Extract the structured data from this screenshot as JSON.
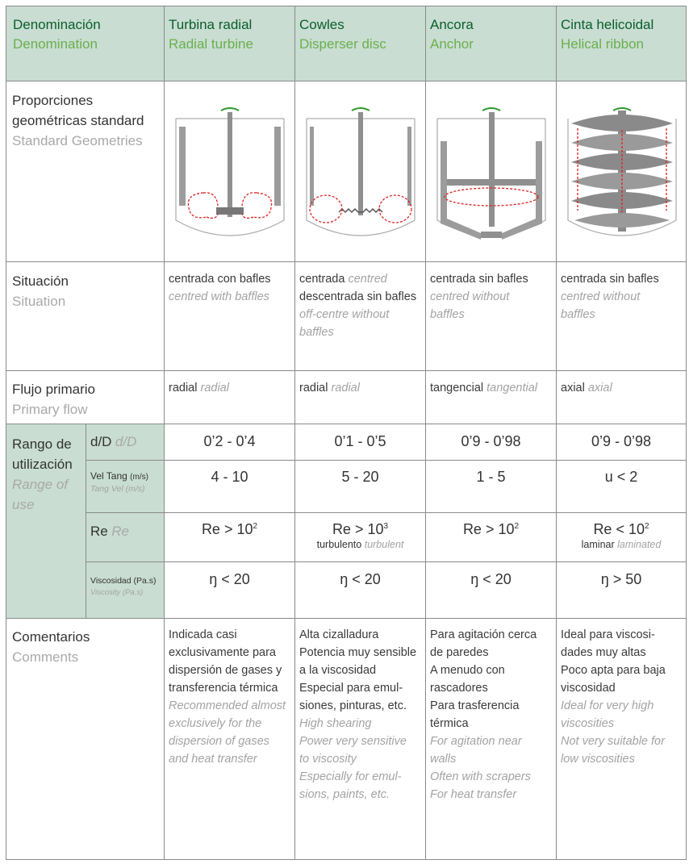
{
  "header": {
    "denomination": {
      "es": "Denominación",
      "en": "Denomination"
    },
    "columns": [
      {
        "es": "Turbina radial",
        "en": "Radial turbine"
      },
      {
        "es": "Cowles",
        "en": "Disperser disc"
      },
      {
        "es": "Ancora",
        "en": "Anchor"
      },
      {
        "es": "Cinta helicoidal",
        "en": "Helical ribbon"
      }
    ]
  },
  "geometry": {
    "label_line1": "Proporciones",
    "label_line2": "geométricas standard",
    "label_en": "Standard Geometries"
  },
  "situation": {
    "label_es": "Situación",
    "label_en": "Situation",
    "cells": [
      {
        "es": "centrada con bafles",
        "en": "centred with baffles"
      },
      {
        "es1": "centrada",
        "en1": "centred",
        "es2": "descentrada sin bafles",
        "en2_line1": "off-centre without",
        "en2_line2": "baffles"
      },
      {
        "es": "centrada sin bafles",
        "en_line1": "centred without",
        "en_line2": "baffles"
      },
      {
        "es": "centrada sin bafles",
        "en_line1": "centred without",
        "en_line2": "baffles"
      }
    ]
  },
  "flow": {
    "label_es": "Flujo primario",
    "label_en": "Primary flow",
    "cells": [
      {
        "es": "radial",
        "en": "radial"
      },
      {
        "es": "radial",
        "en": "radial"
      },
      {
        "es": "tangencial",
        "en": "tangential"
      },
      {
        "es": "axial",
        "en": "axial"
      }
    ]
  },
  "range": {
    "label_line1": "Rango de",
    "label_line2": "utilización",
    "label_en_line1": "Range of",
    "label_en_line2": "use",
    "dd": {
      "es": "d/D",
      "en": "d/D",
      "values": [
        "0’2 - 0’4",
        "0’1 - 0’5",
        "0’9 - 0’98",
        "0’9 - 0’98"
      ]
    },
    "vel": {
      "es_main": "Vel Tang",
      "es_unit": "(m/s)",
      "en_main": "Tang Vel",
      "en_unit": "(m/s)",
      "values": [
        "4 - 10",
        "5 - 20",
        "1 - 5",
        "u  <  2"
      ]
    },
    "re": {
      "es": "Re",
      "en": "Re",
      "values": [
        {
          "base": "Re > 10",
          "exp": "2",
          "sub_es": "",
          "sub_en": ""
        },
        {
          "base": "Re > 10",
          "exp": "3",
          "sub_es": "turbulento",
          "sub_en": "turbulent"
        },
        {
          "base": "Re > 10",
          "exp": "2",
          "sub_es": "",
          "sub_en": ""
        },
        {
          "base": "Re < 10",
          "exp": "2",
          "sub_es": "laminar",
          "sub_en": "laminated"
        }
      ]
    },
    "visc": {
      "es": "Viscosidad (Pa.s)",
      "en": "Viscosity (Pa.s)",
      "values": [
        "ŋ  < 20",
        "ŋ  < 20",
        "ŋ  < 20",
        "ŋ  > 50"
      ]
    }
  },
  "comments": {
    "label_es": "Comentarios",
    "label_en": "Comments",
    "cells": [
      {
        "es": [
          "Indicada casi",
          "exclusivamente para",
          "dispersión de gases y",
          "transferencia térmica"
        ],
        "en": [
          "Recommended almost",
          "exclusively for the",
          "dispersion of gases",
          "and heat transfer"
        ]
      },
      {
        "es": [
          "Alta cizalladura",
          "Potencia muy sensible",
          "a la viscosidad",
          "Especial para emul-",
          "siones, pinturas, etc."
        ],
        "en": [
          "High shearing",
          "Power very sensitive",
          "to viscosity",
          "Especially for emul-",
          "sions, paints, etc."
        ]
      },
      {
        "es": [
          "Para agitación cerca",
          "de paredes",
          "A menudo con",
          "rascadores",
          "Para trasferencia",
          "térmica"
        ],
        "en": [
          "For agitation near",
          "walls",
          "Often with scrapers",
          "For heat transfer"
        ]
      },
      {
        "es": [
          "Ideal para viscosi-",
          "dades muy altas",
          "Poco apta para baja",
          "viscosidad"
        ],
        "en": [
          "Ideal for very high",
          "viscosities",
          "Not very suitable for",
          "low viscosities"
        ]
      }
    ]
  },
  "colors": {
    "header_bg": "#c9ddd2",
    "header_es": "#0a5f2c",
    "header_en": "#6ab04c",
    "flow_arrow": "#e02020"
  },
  "icons": [
    "radial-turbine-diagram",
    "cowles-disc-diagram",
    "anchor-diagram",
    "helical-ribbon-diagram"
  ]
}
